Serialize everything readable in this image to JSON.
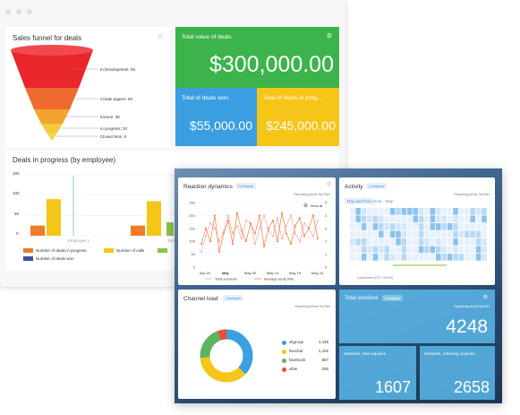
{
  "crm": {
    "sales_funnel": {
      "title": "Sales funnel for deals",
      "stages": [
        {
          "label": "In Development: 65",
          "color": "#e8262b"
        },
        {
          "label": "Create papers: 50",
          "color": "#ef6a2f"
        },
        {
          "label": "Invoice: 35",
          "color": "#f2a42f"
        },
        {
          "label": "In progress: 20",
          "color": "#f5c93a"
        },
        {
          "label": "Closed Won: 5",
          "color": "#f0d648"
        }
      ]
    },
    "total_value": {
      "title": "Total value of deals",
      "value": "$300,000.00",
      "color": "#3cb44b"
    },
    "deals_won": {
      "title": "Total of deals won",
      "value": "$55,000.00",
      "color": "#3b9ee0"
    },
    "deals_in_progress": {
      "title": "Total of deals in prog...",
      "value": "$245,000.00",
      "color": "#f5c518"
    },
    "deals_chart": {
      "title": "Deals in progress (by employee)",
      "y_ticks": [
        "150",
        "100",
        "50",
        "0"
      ],
      "x_labels": [
        "Employee 1",
        "Em"
      ],
      "legend": [
        {
          "label": "Number of deals in progress",
          "color": "#f07b28"
        },
        {
          "label": "Number of calls",
          "color": "#f5c518"
        },
        {
          "label": "Number of deals won",
          "color": "#3b4fa8"
        }
      ]
    }
  },
  "chart_data": {
    "type": "bar",
    "title": "Deals in progress (by employee)",
    "categories": [
      "Employee 1",
      "Em"
    ],
    "series": [
      {
        "name": "Number of deals in progress",
        "values": [
          25,
          25
        ]
      },
      {
        "name": "Number of calls",
        "values": [
          90,
          85
        ]
      },
      {
        "name": "Number of deals won",
        "values": [
          0,
          0
        ]
      }
    ],
    "ylim": [
      0,
      150
    ]
  },
  "dashboard": {
    "reaction": {
      "title": "Reaction dynamics",
      "configure": "Configure",
      "period": "Reporting period: By Filter",
      "show_all": "Show all",
      "y_left": [
        "250",
        "200",
        "150",
        "100",
        "50",
        "0"
      ],
      "y_right": [
        "5",
        "4",
        "3",
        "2",
        "1",
        "0"
      ],
      "x_labels": [
        "Apr 29",
        "May",
        "May 09",
        "May 14",
        "May 19",
        "May 24"
      ],
      "legend": [
        "Total sessions",
        "Average reply time"
      ]
    },
    "activity": {
      "title": "Activity",
      "configure": "Configure",
      "period": "Reporting period: By filter",
      "tabs": [
        "Day and hour",
        "Hour",
        "Day"
      ],
      "legend": "Local times (UTC +03:00)"
    },
    "channel": {
      "title": "Channel load",
      "configure": "Configure",
      "period": "Reporting period: By filter",
      "items": [
        {
          "name": "vkgroup",
          "value": "1,436",
          "color": "#3aa0e0"
        },
        {
          "name": "livechat",
          "value": "1,426",
          "color": "#f5c518"
        },
        {
          "name": "facebook",
          "value": "807",
          "color": "#5bb45e"
        },
        {
          "name": "viber",
          "value": "256",
          "color": "#e84c3d"
        }
      ]
    },
    "total_sessions": {
      "title": "Total sessions",
      "configure": "Configure",
      "period": "Reporting period: By filter",
      "value": "4248"
    },
    "new_inquiries": {
      "title": "Sessions, new inquiries",
      "value": "1607"
    },
    "returning": {
      "title": "Sessions, returning inquiries",
      "value": "2658"
    }
  }
}
